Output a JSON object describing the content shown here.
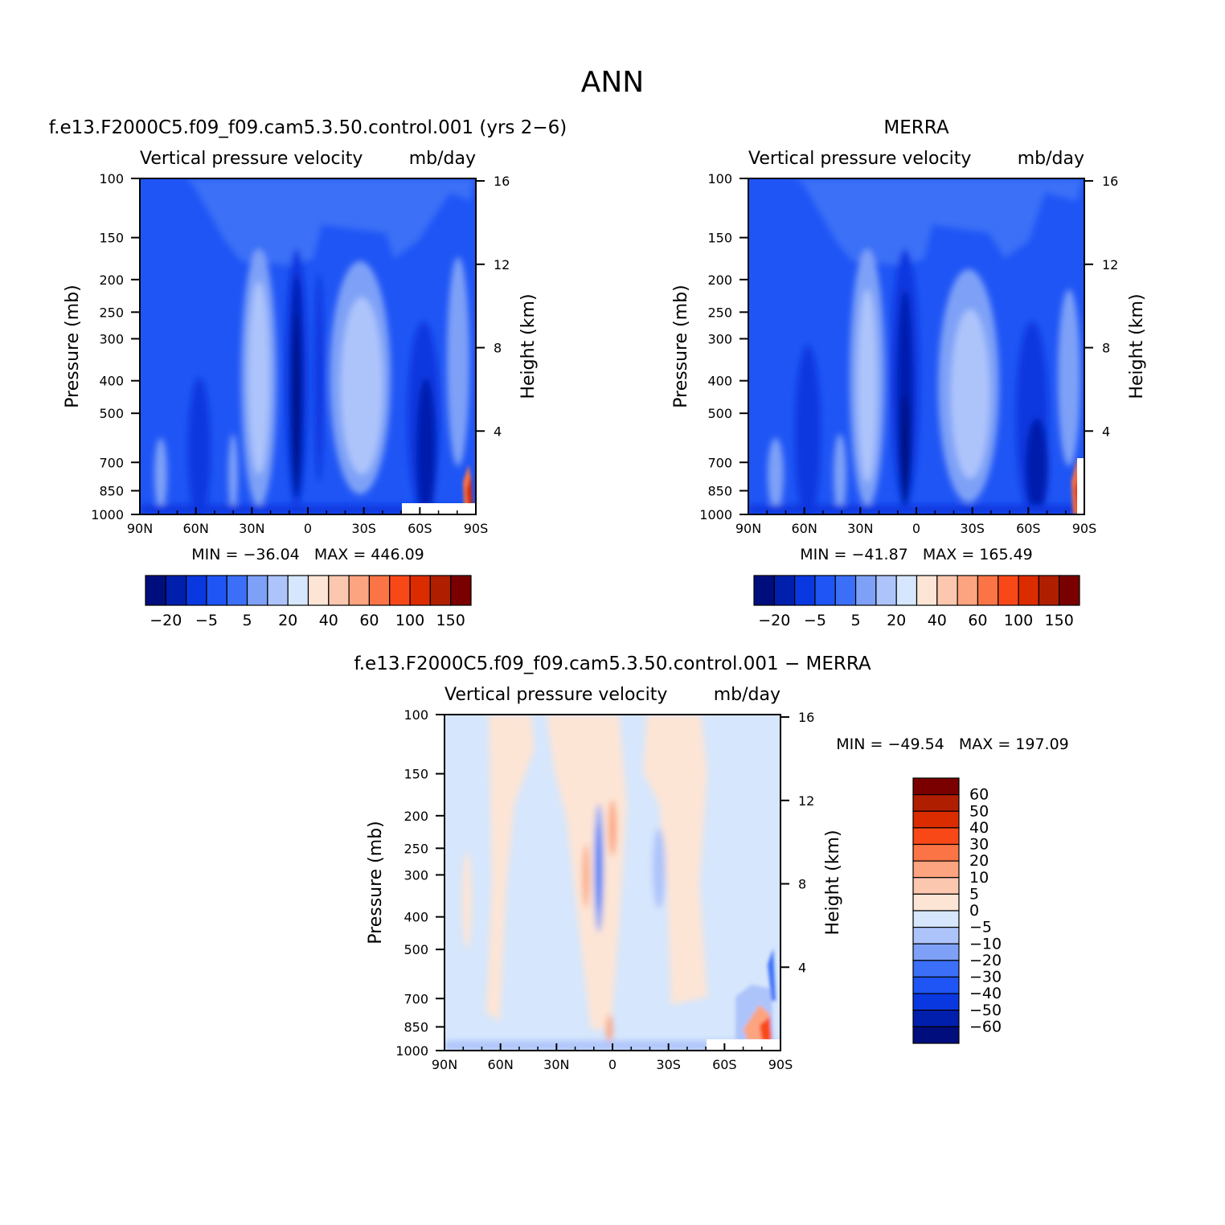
{
  "page_title": "ANN",
  "contour_colors": [
    "#000e7d",
    "#001fad",
    "#0a38e0",
    "#1f55f5",
    "#3b6ff7",
    "#7ea1f7",
    "#adc4fb",
    "#d6e6fc",
    "#fde5d5",
    "#fcc7af",
    "#fca47f",
    "#fb7446",
    "#f94818",
    "#db2c00",
    "#b01e00",
    "#7a0000"
  ],
  "diff_colors": [
    "#000e7d",
    "#001fad",
    "#0a38e0",
    "#1f55f5",
    "#3b6ff7",
    "#7ea1f7",
    "#adc4fb",
    "#d6e6fc",
    "#fde5d5",
    "#fcc7af",
    "#fca47f",
    "#fb7446",
    "#f94818",
    "#db2c00",
    "#b01e00",
    "#7a0000"
  ],
  "chart_data": [
    {
      "type": "heatmap",
      "title": "f.e13.F2000C5.f09_f09.cam5.3.50.control.001 (yrs 2−6)",
      "subtitle_left": "Vertical pressure velocity",
      "subtitle_right": "mb/day",
      "ylabel": "Pressure (mb)",
      "ylabel_right": "Height (km)",
      "x_ticks": [
        "90N",
        "60N",
        "30N",
        "0",
        "30S",
        "60S",
        "90S"
      ],
      "y_ticks": [
        "100",
        "150",
        "200",
        "250",
        "300",
        "400",
        "500",
        "700",
        "850",
        "1000"
      ],
      "y_right_ticks": [
        "16",
        "12",
        "8",
        "4"
      ],
      "min_label": "MIN = −36.04   MAX = 446.09",
      "min": -36.04,
      "max": 446.09,
      "colorbar_labels": [
        "−20",
        "−5",
        "5",
        "20",
        "40",
        "60",
        "100",
        "150"
      ]
    },
    {
      "type": "heatmap",
      "title": "MERRA",
      "subtitle_left": "Vertical pressure velocity",
      "subtitle_right": "mb/day",
      "ylabel": "Pressure (mb)",
      "ylabel_right": "Height (km)",
      "x_ticks": [
        "90N",
        "60N",
        "30N",
        "0",
        "30S",
        "60S",
        "90S"
      ],
      "y_ticks": [
        "100",
        "150",
        "200",
        "250",
        "300",
        "400",
        "500",
        "700",
        "850",
        "1000"
      ],
      "y_right_ticks": [
        "16",
        "12",
        "8",
        "4"
      ],
      "min_label": "MIN = −41.87   MAX = 165.49",
      "min": -41.87,
      "max": 165.49,
      "colorbar_labels": [
        "−20",
        "−5",
        "5",
        "20",
        "40",
        "60",
        "100",
        "150"
      ]
    },
    {
      "type": "heatmap",
      "title": "f.e13.F2000C5.f09_f09.cam5.3.50.control.001 − MERRA",
      "subtitle_left": "Vertical pressure velocity",
      "subtitle_right": "mb/day",
      "ylabel": "Pressure (mb)",
      "ylabel_right": "Height (km)",
      "x_ticks": [
        "90N",
        "60N",
        "30N",
        "0",
        "30S",
        "60S",
        "90S"
      ],
      "y_ticks": [
        "100",
        "150",
        "200",
        "250",
        "300",
        "400",
        "500",
        "700",
        "850",
        "1000"
      ],
      "y_right_ticks": [
        "16",
        "12",
        "8",
        "4"
      ],
      "min_label": "MIN = −49.54   MAX = 197.09",
      "min": -49.54,
      "max": 197.09,
      "colorbar_labels": [
        "60",
        "50",
        "40",
        "30",
        "20",
        "10",
        "5",
        "0",
        "−5",
        "−10",
        "−20",
        "−30",
        "−40",
        "−50",
        "−60"
      ]
    }
  ]
}
